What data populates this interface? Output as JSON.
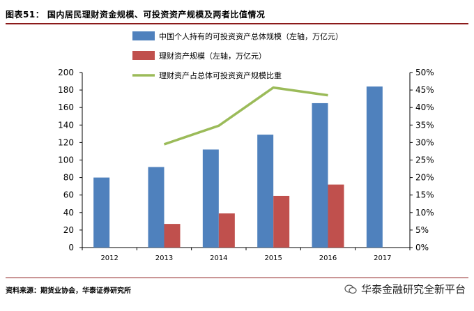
{
  "header": {
    "figure_title": "图表51： 国内居民理财资金规模、可投资资产规模及两者比值情况"
  },
  "footer": {
    "source": "资料来源：期货业协会，华泰证券研究所",
    "watermark": "华泰金融研究全新平台"
  },
  "chart_data": {
    "type": "bar",
    "categories": [
      "2012",
      "2013",
      "2014",
      "2015",
      "2016",
      "2017"
    ],
    "series": [
      {
        "name": "中国个人持有的可投资资产总体规模（左轴，万亿元）",
        "kind": "bar",
        "axis": "left",
        "color": "#4F81BD",
        "values": [
          80,
          92,
          112,
          129,
          165,
          184
        ]
      },
      {
        "name": "理财资产规模（左轴，万亿元）",
        "kind": "bar",
        "axis": "left",
        "color": "#C0504D",
        "values": [
          null,
          27,
          39,
          59,
          72,
          null
        ]
      },
      {
        "name": "理财资产占总体可投资资产规模比重",
        "kind": "line",
        "axis": "right",
        "color": "#9BBB59",
        "values": [
          null,
          29.5,
          34.8,
          45.7,
          43.5,
          null
        ]
      }
    ],
    "left_axis": {
      "ylim": [
        0,
        200
      ],
      "ticks": [
        "0",
        "20",
        "40",
        "60",
        "80",
        "100",
        "120",
        "140",
        "160",
        "180",
        "200"
      ]
    },
    "right_axis": {
      "ylim": [
        0,
        50
      ],
      "ticks": [
        "0%",
        "5%",
        "10%",
        "15%",
        "20%",
        "25%",
        "30%",
        "35%",
        "40%",
        "45%",
        "50%"
      ]
    },
    "legend": "top",
    "grid": false
  }
}
